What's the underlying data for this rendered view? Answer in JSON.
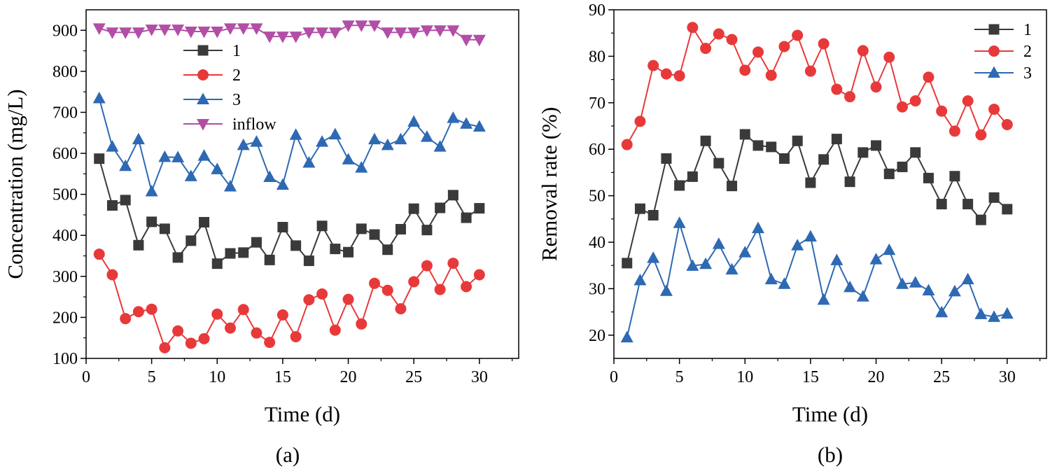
{
  "figure": {
    "panel_a_caption": "(a)",
    "panel_b_caption": "(b)"
  },
  "chart_data": [
    {
      "id": "a",
      "type": "line",
      "xlabel": "Time (d)",
      "ylabel": "Concentration (mg/L)",
      "xlim": [
        0,
        33
      ],
      "ylim": [
        100,
        950
      ],
      "xticks": [
        0,
        5,
        10,
        15,
        20,
        25,
        30
      ],
      "yticks": [
        100,
        200,
        300,
        400,
        500,
        600,
        700,
        800,
        900
      ],
      "legend_position": "upper-center",
      "x": [
        1,
        2,
        3,
        4,
        5,
        6,
        7,
        8,
        9,
        10,
        11,
        12,
        13,
        14,
        15,
        16,
        17,
        18,
        19,
        20,
        21,
        22,
        23,
        24,
        25,
        26,
        27,
        28,
        29,
        30
      ],
      "series": [
        {
          "name": "1",
          "color": "#3a3a3a",
          "marker": "square",
          "values": [
            587,
            473,
            486,
            376,
            433,
            416,
            346,
            387,
            432,
            331,
            356,
            358,
            383,
            340,
            420,
            375,
            338,
            423,
            367,
            359,
            416,
            402,
            365,
            415,
            465,
            413,
            467,
            498,
            443,
            466
          ]
        },
        {
          "name": "2",
          "color": "#e8393a",
          "marker": "circle",
          "values": [
            354,
            304,
            197,
            214,
            220,
            126,
            167,
            137,
            148,
            208,
            174,
            219,
            162,
            139,
            206,
            153,
            243,
            257,
            169,
            244,
            184,
            283,
            266,
            221,
            287,
            326,
            268,
            332,
            275,
            304
          ]
        },
        {
          "name": "3",
          "color": "#2e69b3",
          "marker": "triangle-up",
          "values": [
            734,
            616,
            569,
            634,
            507,
            591,
            590,
            544,
            594,
            561,
            519,
            620,
            628,
            542,
            523,
            645,
            577,
            628,
            646,
            585,
            565,
            634,
            620,
            634,
            677,
            640,
            616,
            686,
            672,
            665
          ]
        },
        {
          "name": "inflow",
          "color": "#b24ea6",
          "marker": "triangle-down",
          "values": [
            905,
            895,
            895,
            895,
            902,
            902,
            902,
            897,
            897,
            897,
            905,
            905,
            905,
            885,
            885,
            885,
            895,
            895,
            895,
            912,
            912,
            912,
            895,
            895,
            895,
            900,
            900,
            900,
            877,
            877
          ]
        }
      ]
    },
    {
      "id": "b",
      "type": "line",
      "xlabel": "Time (d)",
      "ylabel": "Removal rate (%)",
      "xlim": [
        0,
        33
      ],
      "ylim": [
        15,
        90
      ],
      "xticks": [
        0,
        5,
        10,
        15,
        20,
        25,
        30
      ],
      "yticks": [
        20,
        30,
        40,
        50,
        60,
        70,
        80,
        90
      ],
      "legend_position": "top-right",
      "x": [
        1,
        2,
        3,
        4,
        5,
        6,
        7,
        8,
        9,
        10,
        11,
        12,
        13,
        14,
        15,
        16,
        17,
        18,
        19,
        20,
        21,
        22,
        23,
        24,
        25,
        26,
        27,
        28,
        29,
        30
      ],
      "series": [
        {
          "name": "1",
          "color": "#3a3a3a",
          "marker": "square",
          "values": [
            35.5,
            47.2,
            45.8,
            58.0,
            52.2,
            54.1,
            61.8,
            57.0,
            52.1,
            63.2,
            60.8,
            60.5,
            58.0,
            61.8,
            52.8,
            57.8,
            62.2,
            53.0,
            59.3,
            60.8,
            54.7,
            56.2,
            59.3,
            53.8,
            48.2,
            54.2,
            48.2,
            44.8,
            49.6,
            47.1
          ]
        },
        {
          "name": "2",
          "color": "#e8393a",
          "marker": "circle",
          "values": [
            61.0,
            66.0,
            78.0,
            76.2,
            75.8,
            86.2,
            81.7,
            84.8,
            83.6,
            77.0,
            80.9,
            75.9,
            82.1,
            84.5,
            76.8,
            82.7,
            72.9,
            71.3,
            81.2,
            73.4,
            79.8,
            69.1,
            70.4,
            75.5,
            68.2,
            63.9,
            70.4,
            63.1,
            68.6,
            65.3
          ]
        },
        {
          "name": "3",
          "color": "#2e69b3",
          "marker": "triangle-up",
          "values": [
            19.5,
            31.8,
            36.6,
            29.5,
            44.1,
            34.9,
            35.3,
            39.6,
            34.1,
            37.8,
            43.0,
            32.0,
            31.0,
            39.3,
            41.2,
            27.6,
            36.1,
            30.3,
            28.3,
            36.3,
            38.3,
            31.0,
            31.3,
            29.6,
            24.9,
            29.4,
            32.0,
            24.5,
            23.9,
            24.6
          ]
        }
      ]
    }
  ]
}
